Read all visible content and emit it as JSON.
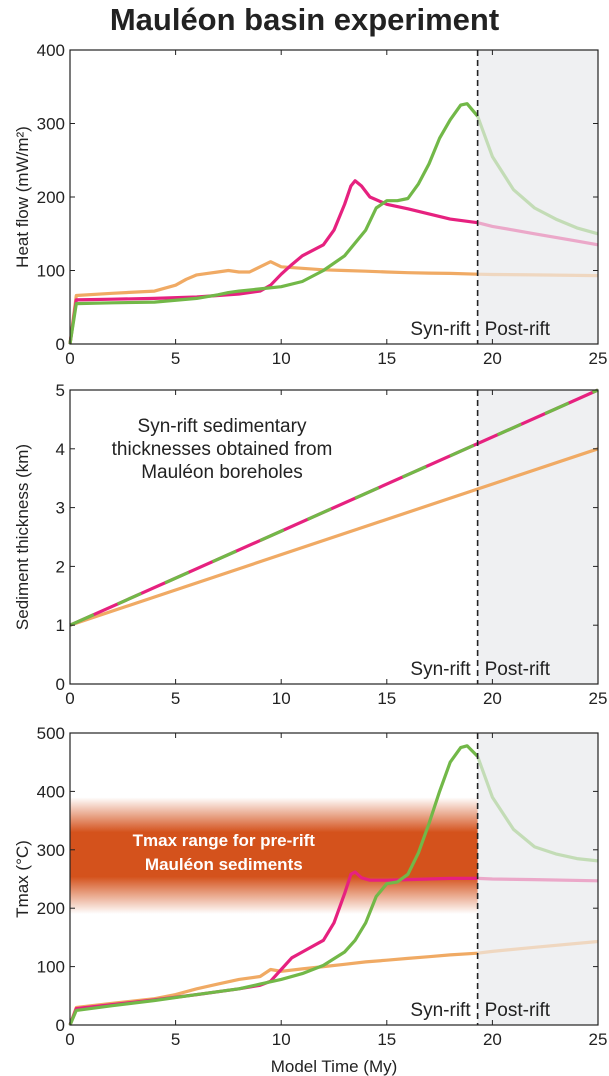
{
  "title": "Mauléon basin experiment",
  "colors": {
    "orange": "#f0aa64",
    "magenta": "#e6217f",
    "green": "#72b848",
    "postrift_bg": "#eff0f2",
    "tmax_band": "#d4521c",
    "axis": "#222222"
  },
  "chart_data": [
    {
      "type": "line",
      "ylabel": "Heat flow (mW/m²)",
      "xlabel": "",
      "xlim": [
        0,
        25
      ],
      "ylim": [
        0,
        400
      ],
      "xticks": [
        0,
        5,
        10,
        15,
        20,
        25
      ],
      "yticks": [
        0,
        100,
        200,
        300,
        400
      ],
      "boundary_x": 19.3,
      "region_labels": [
        "Syn-rift",
        "Post-rift"
      ],
      "series": [
        {
          "color": "orange",
          "x": [
            0,
            0.3,
            2,
            4,
            5,
            5.5,
            6,
            6.5,
            7,
            7.5,
            8,
            8.5,
            9,
            9.5,
            10,
            11,
            12,
            13,
            14,
            15,
            16,
            17,
            18,
            19.3,
            20,
            22,
            25
          ],
          "y": [
            0,
            66,
            69,
            72,
            80,
            88,
            94,
            96,
            98,
            100,
            98,
            98,
            105,
            112,
            105,
            103,
            101,
            100,
            99,
            98,
            97,
            96.5,
            96,
            95,
            94.5,
            94,
            93
          ]
        },
        {
          "color": "magenta",
          "x": [
            0,
            0.3,
            2,
            4,
            6,
            8,
            9,
            9.5,
            10,
            10.5,
            11,
            12,
            12.5,
            13,
            13.3,
            13.5,
            13.8,
            14.2,
            15,
            16,
            17,
            18,
            19.3,
            20,
            21,
            22,
            23,
            24,
            25
          ],
          "y": [
            0,
            60,
            61,
            62,
            64,
            68,
            72,
            80,
            95,
            108,
            120,
            135,
            155,
            190,
            215,
            222,
            215,
            200,
            190,
            184,
            177,
            170,
            165,
            160,
            155,
            150,
            145,
            140,
            135
          ]
        },
        {
          "color": "green",
          "x": [
            0,
            0.3,
            2,
            4,
            6,
            7,
            7.5,
            8,
            9,
            10,
            11,
            12,
            13,
            14,
            14.5,
            15,
            15.5,
            16,
            16.5,
            17,
            17.5,
            18,
            18.5,
            18.8,
            19.3,
            20,
            21,
            22,
            23,
            24,
            25
          ],
          "y": [
            0,
            55,
            56,
            57,
            62,
            67,
            70,
            72,
            75,
            78,
            85,
            100,
            120,
            155,
            185,
            195,
            195,
            198,
            218,
            245,
            280,
            305,
            325,
            327,
            310,
            255,
            210,
            185,
            170,
            158,
            150
          ]
        }
      ]
    },
    {
      "type": "line",
      "ylabel": "Sediment thickness (km)",
      "xlabel": "",
      "xlim": [
        0,
        25
      ],
      "ylim": [
        0,
        5
      ],
      "xticks": [
        0,
        5,
        10,
        15,
        20,
        25
      ],
      "yticks": [
        0,
        1,
        2,
        3,
        4,
        5
      ],
      "boundary_x": 19.3,
      "region_labels": [
        "Syn-rift",
        "Post-rift"
      ],
      "annotation": [
        "Syn-rift sedimentary",
        "thicknesses obtained from",
        "Mauléon boreholes"
      ],
      "series": [
        {
          "color": "orange",
          "x": [
            0,
            25
          ],
          "y": [
            1.0,
            4.0
          ]
        },
        {
          "color": "magenta",
          "x": [
            0,
            25
          ],
          "y": [
            1.0,
            5.0
          ],
          "dashed_with": "green"
        }
      ]
    },
    {
      "type": "line",
      "ylabel": "Tmax (°C)",
      "xlabel": "Model Time (My)",
      "xlim": [
        0,
        25
      ],
      "ylim": [
        0,
        500
      ],
      "xticks": [
        0,
        5,
        10,
        15,
        20,
        25
      ],
      "yticks": [
        0,
        100,
        200,
        300,
        400,
        500
      ],
      "boundary_x": 19.3,
      "region_labels": [
        "Syn-rift",
        "Post-rift"
      ],
      "band": {
        "y_from": 200,
        "y_to": 380,
        "x_from": 0,
        "x_to": 19.3,
        "label": [
          "Tmax range for pre-rift",
          "Mauléon sediments"
        ]
      },
      "series": [
        {
          "color": "orange",
          "x": [
            0,
            0.3,
            2,
            4,
            5,
            6,
            7,
            8,
            9,
            9.5,
            10,
            11,
            12,
            13,
            14,
            15,
            16,
            17,
            18,
            19.3,
            20,
            22,
            25
          ],
          "y": [
            0,
            30,
            37,
            45,
            52,
            62,
            70,
            78,
            83,
            95,
            92,
            96,
            100,
            104,
            108,
            111,
            114,
            117,
            120,
            123,
            126,
            133,
            143
          ]
        },
        {
          "color": "magenta",
          "x": [
            0,
            0.3,
            2,
            4,
            6,
            8,
            9,
            9.5,
            10,
            10.5,
            11,
            12,
            12.5,
            13,
            13.3,
            13.5,
            13.8,
            14.2,
            15,
            16,
            17,
            18,
            19.3,
            20,
            22,
            25
          ],
          "y": [
            0,
            28,
            35,
            43,
            52,
            62,
            68,
            75,
            95,
            115,
            125,
            145,
            175,
            225,
            258,
            262,
            252,
            248,
            248,
            249,
            250,
            251,
            251,
            250,
            249,
            247
          ]
        },
        {
          "color": "green",
          "x": [
            0,
            0.3,
            2,
            4,
            6,
            8,
            9,
            10,
            11,
            12,
            13,
            13.5,
            14,
            14.5,
            15,
            15.5,
            16,
            16.5,
            17,
            17.5,
            18,
            18.5,
            18.8,
            19.3,
            20,
            21,
            22,
            23,
            24,
            25
          ],
          "y": [
            0,
            25,
            33,
            42,
            52,
            62,
            70,
            78,
            88,
            102,
            125,
            145,
            175,
            220,
            242,
            245,
            258,
            295,
            345,
            400,
            450,
            475,
            478,
            460,
            390,
            335,
            305,
            293,
            285,
            281
          ]
        }
      ]
    }
  ]
}
